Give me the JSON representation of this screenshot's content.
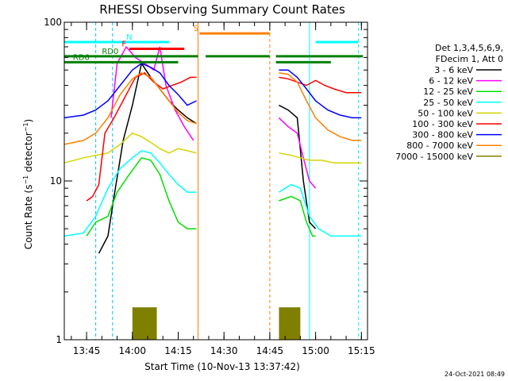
{
  "chart_data": {
    "type": "line",
    "title": "RHESSI Observing Summary Count Rates",
    "xlabel": "Start Time (10-Nov-13 13:37:42)",
    "ylabel": "Count Rate (s⁻¹ detector⁻¹)",
    "ylabel_main": "Count Rate (s",
    "ylabel_exp1": "−1",
    "ylabel_mid": " detector",
    "ylabel_exp2": "−1",
    "ylabel_end": ")",
    "y_scale": "log",
    "xlim": [
      "13:37:42",
      "15:17:00"
    ],
    "ylim": [
      1,
      100
    ],
    "x_ticks": [
      "13:45",
      "14:00",
      "14:15",
      "14:30",
      "14:45",
      "15:00",
      "15:15"
    ],
    "y_ticks": [
      "1",
      "10",
      "100"
    ],
    "timestamp": "24-Oct-2021 08:49",
    "legend": {
      "placement": "right",
      "header1": "Det 1,3,4,5,6,9,",
      "header2": "FDecim 1, Att 0",
      "entries": [
        {
          "label": "3 - 6 keV",
          "color": "#000000"
        },
        {
          "label": "6 - 12 keV",
          "color": "#ff00ff"
        },
        {
          "label": "12 - 25 keV",
          "color": "#00e000"
        },
        {
          "label": "25 - 50 keV",
          "color": "#00ffff"
        },
        {
          "label": "50 - 100 keV",
          "color": "#d4d400"
        },
        {
          "label": "100 - 300 keV",
          "color": "#ff0000"
        },
        {
          "label": "300 - 800 keV",
          "color": "#0000ff"
        },
        {
          "label": "800 - 7000 keV",
          "color": "#ff8000"
        },
        {
          "label": "7000 - 15000 keV",
          "color": "#808000"
        }
      ]
    },
    "flag_bars": [
      {
        "label": "",
        "color": "#00ffff",
        "y": 75,
        "segments": [
          [
            "13:37:42",
            "14:12:00"
          ],
          [
            "15:00:00",
            "15:14:00"
          ]
        ]
      },
      {
        "label": "N",
        "color": "#00ffff",
        "y": 75,
        "segments": []
      },
      {
        "label": "S",
        "color": "#ff8000",
        "y": 85,
        "segments": [
          [
            "14:22:00",
            "14:45:00"
          ]
        ]
      },
      {
        "label": "F",
        "color": "#ff0000",
        "y": 68,
        "segments": [
          [
            "13:59:00",
            "14:17:00"
          ]
        ]
      },
      {
        "label": "RD0",
        "color": "#008000",
        "y": 61,
        "segments": [
          [
            "13:37:42",
            "14:21:30"
          ],
          [
            "14:24:00",
            "14:45:00"
          ],
          [
            "14:47:00",
            "15:15:30"
          ]
        ]
      },
      {
        "label": "RD6",
        "color": "#008000",
        "y": 56,
        "segments": [
          [
            "13:37:42",
            "14:15:00"
          ],
          [
            "14:47:00",
            "15:05:00"
          ]
        ]
      }
    ],
    "vlines": [
      {
        "t": "13:48:00",
        "color": "#00c0ff",
        "style": "dashed"
      },
      {
        "t": "13:53:30",
        "color": "#00c0ff",
        "style": "dashed"
      },
      {
        "t": "14:21:30",
        "color": "#ff8000",
        "style": "solid"
      },
      {
        "t": "14:45:00",
        "color": "#ff8000",
        "style": "dashed"
      },
      {
        "t": "14:58:00",
        "color": "#00ffff",
        "style": "solid"
      },
      {
        "t": "15:14:00",
        "color": "#00ffff",
        "style": "dashed"
      }
    ],
    "series": [
      {
        "name": "3 - 6 keV",
        "color": "#000000",
        "segments": [
          [
            [
              "13:49:00",
              3.5
            ],
            [
              "13:52:00",
              4.5
            ],
            [
              "13:54:00",
              8
            ],
            [
              "13:57:00",
              18
            ],
            [
              "14:00:00",
              30
            ],
            [
              "14:03:00",
              55
            ],
            [
              "14:06:00",
              45
            ],
            [
              "14:09:00",
              38
            ],
            [
              "14:12:00",
              32
            ],
            [
              "14:15:00",
              28
            ],
            [
              "14:18:00",
              25
            ],
            [
              "14:21:00",
              23
            ]
          ],
          [
            [
              "14:48:00",
              30
            ],
            [
              "14:51:00",
              28
            ],
            [
              "14:54:00",
              25
            ],
            [
              "14:56:00",
              10
            ],
            [
              "14:58:00",
              5.5
            ],
            [
              "15:00:00",
              5
            ]
          ]
        ]
      },
      {
        "name": "6 - 12 keV",
        "color": "#ff00ff",
        "segments": [
          [
            [
              "13:53:00",
              25
            ],
            [
              "13:55:00",
              55
            ],
            [
              "13:58:00",
              70
            ],
            [
              "14:01:00",
              60
            ],
            [
              "14:04:00",
              55
            ],
            [
              "14:07:00",
              50
            ],
            [
              "14:09:00",
              70
            ],
            [
              "14:11:00",
              40
            ],
            [
              "14:14:00",
              28
            ],
            [
              "14:17:00",
              22
            ],
            [
              "14:20:00",
              18
            ]
          ],
          [
            [
              "14:48:00",
              25
            ],
            [
              "14:51:00",
              22
            ],
            [
              "14:54:00",
              20
            ],
            [
              "14:56:00",
              14
            ],
            [
              "14:58:00",
              10
            ],
            [
              "15:00:00",
              9
            ]
          ]
        ]
      },
      {
        "name": "12 - 25 keV",
        "color": "#00e000",
        "segments": [
          [
            [
              "13:45:00",
              4.5
            ],
            [
              "13:48:00",
              5.5
            ],
            [
              "13:52:00",
              6
            ],
            [
              "13:55:00",
              8.5
            ],
            [
              "13:59:00",
              11
            ],
            [
              "14:03:00",
              14
            ],
            [
              "14:06:00",
              13.5
            ],
            [
              "14:09:00",
              11
            ],
            [
              "14:12:00",
              7.5
            ],
            [
              "14:15:00",
              5.5
            ],
            [
              "14:18:00",
              5
            ],
            [
              "14:21:00",
              5
            ]
          ],
          [
            [
              "14:48:00",
              7.5
            ],
            [
              "14:52:00",
              8
            ],
            [
              "14:55:00",
              7.5
            ],
            [
              "14:57:00",
              5.5
            ],
            [
              "14:59:00",
              4.5
            ],
            [
              "15:00:00",
              4.5
            ]
          ]
        ]
      },
      {
        "name": "25 - 50 keV",
        "color": "#00ffff",
        "segments": [
          [
            [
              "13:37:42",
              4.5
            ],
            [
              "13:44:00",
              4.7
            ],
            [
              "13:48:00",
              6
            ],
            [
              "13:52:00",
              9
            ],
            [
              "13:56:00",
              12
            ],
            [
              "14:00:00",
              14
            ],
            [
              "14:03:00",
              15.5
            ],
            [
              "14:06:00",
              15
            ],
            [
              "14:09:00",
              13
            ],
            [
              "14:12:00",
              11
            ],
            [
              "14:15:00",
              9.5
            ],
            [
              "14:18:00",
              8.5
            ],
            [
              "14:21:00",
              8.5
            ]
          ],
          [
            [
              "14:48:00",
              8.5
            ],
            [
              "14:52:00",
              9.5
            ],
            [
              "14:55:00",
              9
            ],
            [
              "14:58:00",
              6
            ],
            [
              "15:01:00",
              5
            ],
            [
              "15:05:00",
              4.5
            ],
            [
              "15:10:00",
              4.5
            ],
            [
              "15:15:00",
              4.5
            ]
          ]
        ]
      },
      {
        "name": "50 - 100 keV",
        "color": "#d4d400",
        "segments": [
          [
            [
              "13:37:42",
              13
            ],
            [
              "13:44:00",
              14
            ],
            [
              "13:48:00",
              14.5
            ],
            [
              "13:52:00",
              15
            ],
            [
              "13:56:00",
              17
            ],
            [
              "14:00:00",
              20
            ],
            [
              "14:03:00",
              19
            ],
            [
              "14:06:00",
              17.5
            ],
            [
              "14:09:00",
              16
            ],
            [
              "14:12:00",
              15
            ],
            [
              "14:15:00",
              16
            ],
            [
              "14:18:00",
              15.5
            ],
            [
              "14:21:00",
              15
            ]
          ],
          [
            [
              "14:48:00",
              15
            ],
            [
              "14:52:00",
              14.5
            ],
            [
              "14:55:00",
              14
            ],
            [
              "14:58:00",
              13.5
            ],
            [
              "15:02:00",
              13.5
            ],
            [
              "15:06:00",
              13
            ],
            [
              "15:10:00",
              13
            ],
            [
              "15:15:00",
              13
            ]
          ]
        ]
      },
      {
        "name": "100 - 300 keV",
        "color": "#ff0000",
        "segments": [
          [
            [
              "13:45:00",
              7.5
            ],
            [
              "13:47:00",
              8
            ],
            [
              "13:49:00",
              9.5
            ],
            [
              "13:51:00",
              20
            ],
            [
              "13:54:00",
              25
            ],
            [
              "13:58:00",
              35
            ],
            [
              "14:01:00",
              45
            ],
            [
              "14:04:00",
              48
            ],
            [
              "14:07:00",
              42
            ],
            [
              "14:10:00",
              38
            ],
            [
              "14:13:00",
              40
            ],
            [
              "14:16:00",
              42
            ],
            [
              "14:19:00",
              45
            ],
            [
              "14:21:00",
              45
            ]
          ],
          [
            [
              "14:48:00",
              45
            ],
            [
              "14:51:00",
              44
            ],
            [
              "14:54:00",
              42
            ],
            [
              "14:57:00",
              40
            ],
            [
              "15:00:00",
              43
            ],
            [
              "15:03:00",
              40
            ],
            [
              "15:06:00",
              38
            ],
            [
              "15:10:00",
              36
            ],
            [
              "15:15:00",
              36
            ]
          ]
        ]
      },
      {
        "name": "300 - 800 keV",
        "color": "#0000ff",
        "segments": [
          [
            [
              "13:37:42",
              25
            ],
            [
              "13:44:00",
              26
            ],
            [
              "13:48:00",
              28
            ],
            [
              "13:52:00",
              32
            ],
            [
              "13:56:00",
              40
            ],
            [
              "14:00:00",
              50
            ],
            [
              "14:03:00",
              55
            ],
            [
              "14:06:00",
              52
            ],
            [
              "14:09:00",
              48
            ],
            [
              "14:12:00",
              40
            ],
            [
              "14:15:00",
              35
            ],
            [
              "14:18:00",
              30
            ],
            [
              "14:21:00",
              32
            ]
          ],
          [
            [
              "14:48:00",
              50
            ],
            [
              "14:51:00",
              50
            ],
            [
              "14:54:00",
              45
            ],
            [
              "14:57:00",
              38
            ],
            [
              "15:00:00",
              32
            ],
            [
              "15:04:00",
              28
            ],
            [
              "15:08:00",
              26
            ],
            [
              "15:12:00",
              25
            ],
            [
              "15:15:00",
              25
            ]
          ]
        ]
      },
      {
        "name": "800 - 7000 keV",
        "color": "#ff8000",
        "segments": [
          [
            [
              "13:37:42",
              17
            ],
            [
              "13:44:00",
              18
            ],
            [
              "13:48:00",
              20
            ],
            [
              "13:52:00",
              25
            ],
            [
              "13:56:00",
              35
            ],
            [
              "14:00:00",
              44
            ],
            [
              "14:03:00",
              48
            ],
            [
              "14:06:00",
              45
            ],
            [
              "14:09:00",
              38
            ],
            [
              "14:12:00",
              32
            ],
            [
              "14:15:00",
              27
            ],
            [
              "14:18:00",
              24
            ],
            [
              "14:21:00",
              23
            ]
          ],
          [
            [
              "14:48:00",
              48
            ],
            [
              "14:51:00",
              47
            ],
            [
              "14:54:00",
              42
            ],
            [
              "14:57:00",
              32
            ],
            [
              "15:00:00",
              25
            ],
            [
              "15:04:00",
              21
            ],
            [
              "15:08:00",
              19
            ],
            [
              "15:12:00",
              18
            ],
            [
              "15:15:00",
              18
            ]
          ]
        ]
      },
      {
        "name": "7000 - 15000 keV",
        "color": "#808000",
        "segments": [
          [
            [
              "14:00:00",
              1.6
            ],
            [
              "14:08:00",
              1.6
            ]
          ],
          [
            [
              "14:48:00",
              1.6
            ],
            [
              "14:55:00",
              1.6
            ]
          ]
        ]
      }
    ]
  }
}
